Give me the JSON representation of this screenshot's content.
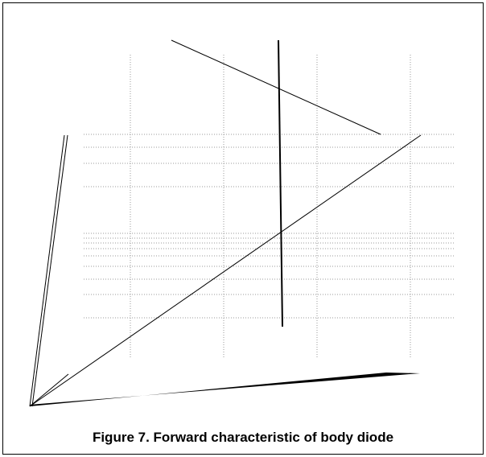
{
  "caption": "Figure 7. Forward characteristic of body diode"
}
